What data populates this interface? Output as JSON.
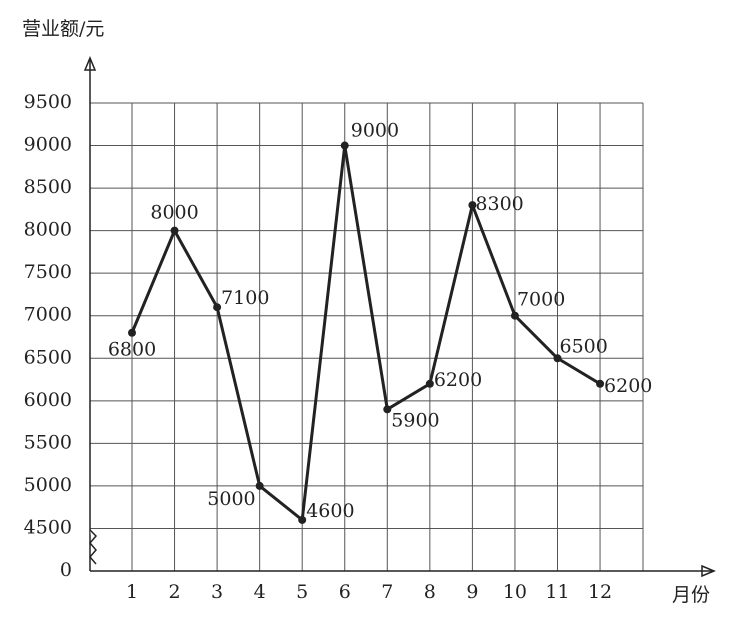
{
  "chart_data": {
    "type": "line",
    "y_label": "营业额/元",
    "x_label": "月份",
    "categories": [
      "1",
      "2",
      "3",
      "4",
      "5",
      "6",
      "7",
      "8",
      "9",
      "10",
      "11",
      "12"
    ],
    "series": [
      {
        "color": "#222222",
        "values": [
          6800,
          8000,
          7100,
          5000,
          4600,
          9000,
          5900,
          6200,
          8300,
          7000,
          6500,
          6200
        ]
      }
    ],
    "ylim": [
      0,
      9500
    ],
    "yticks": [
      0,
      4500,
      5000,
      5500,
      6000,
      6500,
      7000,
      7500,
      8000,
      8500,
      9000,
      9500
    ],
    "axis_break": [
      0,
      4500
    ],
    "grid": true
  }
}
